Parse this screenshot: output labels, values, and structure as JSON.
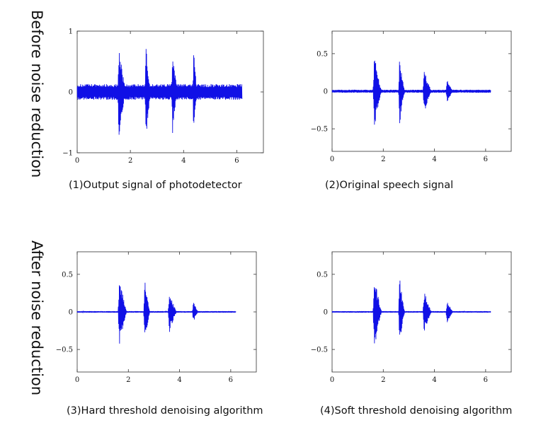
{
  "row_labels": [
    "Before noise reduction",
    "After noise reduction"
  ],
  "captions": [
    "(1)Output signal of photodetector",
    "(2)Original speech signal",
    "(3)Hard threshold denoising algorithm",
    "(4)Soft threshold denoising algorithm"
  ],
  "colors": {
    "signal": "#1010e6",
    "axes": "#333333",
    "background": "#ffffff"
  },
  "chart_data": [
    {
      "type": "line",
      "title": "",
      "xlabel": "",
      "ylabel": "",
      "xlim": [
        0,
        7
      ],
      "ylim": [
        -1,
        1
      ],
      "xticks": [
        0,
        2,
        4,
        6
      ],
      "xtick_labels": [
        "0",
        "2",
        "4",
        "6"
      ],
      "yticks": [
        -1,
        0,
        1
      ],
      "ytick_labels": [
        "−1",
        "0",
        "1"
      ],
      "grid": false,
      "signal_end": 6.2,
      "noise_floor": 0.13,
      "bursts": [
        {
          "start": 1.52,
          "end": 1.85,
          "peak": 0.78
        },
        {
          "start": 2.55,
          "end": 2.78,
          "peak": 0.77
        },
        {
          "start": 3.55,
          "end": 3.78,
          "peak": 0.74
        },
        {
          "start": 4.35,
          "end": 4.52,
          "peak": 0.72
        }
      ]
    },
    {
      "type": "line",
      "title": "",
      "xlabel": "",
      "ylabel": "",
      "xlim": [
        0,
        7
      ],
      "ylim": [
        -0.8,
        0.8
      ],
      "xticks": [
        0,
        2,
        4,
        6
      ],
      "xtick_labels": [
        "0",
        "2",
        "4",
        "6"
      ],
      "yticks": [
        0.5,
        0,
        -0.5
      ],
      "ytick_labels": [
        "0.5",
        "0",
        "−0.5"
      ],
      "grid": false,
      "signal_end": 6.2,
      "noise_floor": 0.02,
      "bursts": [
        {
          "start": 1.6,
          "end": 1.95,
          "peak": 0.52
        },
        {
          "start": 2.6,
          "end": 2.85,
          "peak": 0.45
        },
        {
          "start": 3.55,
          "end": 3.9,
          "peak": 0.3
        },
        {
          "start": 4.45,
          "end": 4.75,
          "peak": 0.15
        }
      ]
    },
    {
      "type": "line",
      "title": "",
      "xlabel": "",
      "ylabel": "",
      "xlim": [
        0,
        7
      ],
      "ylim": [
        -0.8,
        0.8
      ],
      "xticks": [
        0,
        2,
        4,
        6
      ],
      "xtick_labels": [
        "0",
        "2",
        "4",
        "6"
      ],
      "yticks": [
        0.5,
        0,
        -0.5
      ],
      "ytick_labels": [
        "0.5",
        "0",
        "−0.5"
      ],
      "grid": false,
      "signal_end": 6.2,
      "noise_floor": 0.01,
      "bursts": [
        {
          "start": 1.6,
          "end": 1.95,
          "peak": 0.5
        },
        {
          "start": 2.6,
          "end": 2.85,
          "peak": 0.47
        },
        {
          "start": 3.55,
          "end": 3.9,
          "peak": 0.28
        },
        {
          "start": 4.5,
          "end": 4.75,
          "peak": 0.14
        }
      ]
    },
    {
      "type": "line",
      "title": "",
      "xlabel": "",
      "ylabel": "",
      "xlim": [
        0,
        7
      ],
      "ylim": [
        -0.8,
        0.8
      ],
      "xticks": [
        0,
        2,
        4,
        6
      ],
      "xtick_labels": [
        "0",
        "2",
        "4",
        "6"
      ],
      "yticks": [
        0.5,
        0,
        -0.5
      ],
      "ytick_labels": [
        "0.5",
        "0",
        "−0.5"
      ],
      "grid": false,
      "signal_end": 6.2,
      "noise_floor": 0.01,
      "bursts": [
        {
          "start": 1.6,
          "end": 1.95,
          "peak": 0.5
        },
        {
          "start": 2.6,
          "end": 2.85,
          "peak": 0.47
        },
        {
          "start": 3.55,
          "end": 3.9,
          "peak": 0.28
        },
        {
          "start": 4.45,
          "end": 4.75,
          "peak": 0.15
        }
      ]
    }
  ]
}
